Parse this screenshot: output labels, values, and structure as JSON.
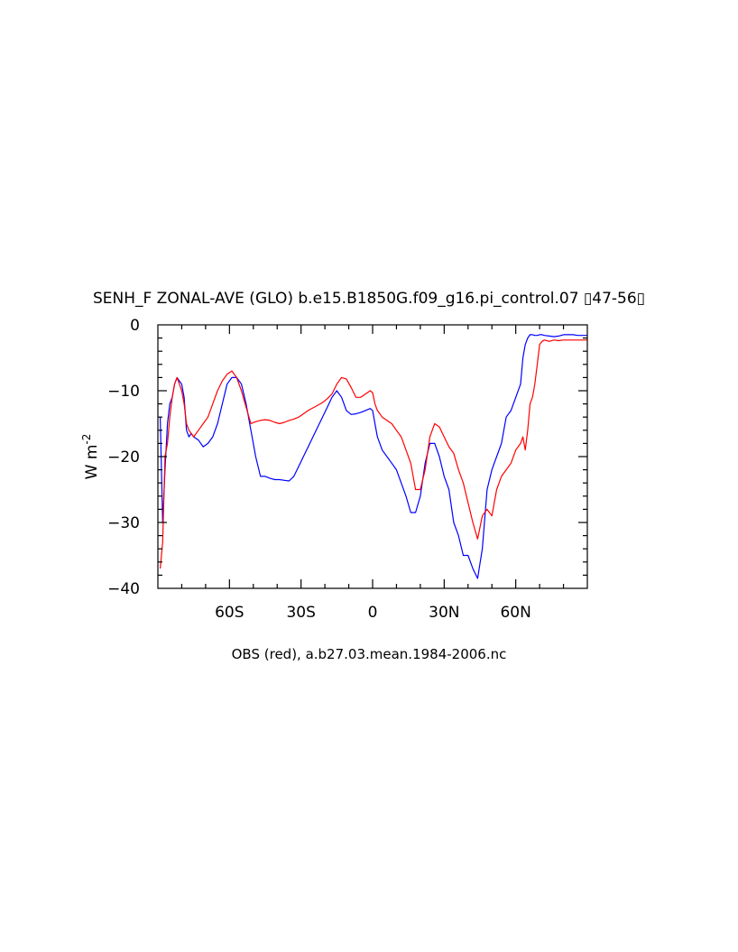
{
  "chart_data": {
    "type": "line",
    "title": "SENH_F ZONAL-AVE (GLO) b.e15.B1850G.f09_g16.pi_control.07 ▯47-56▯",
    "ylabel": "W m",
    "ylabel_exponent": "-2",
    "caption": "OBS (red), a.b27.03.mean.1984-2006.nc",
    "xlim": [
      -90,
      90
    ],
    "ylim": [
      -40,
      0
    ],
    "grid": false,
    "x_ticks": [
      {
        "value": -60,
        "label": "60S"
      },
      {
        "value": -30,
        "label": "30S"
      },
      {
        "value": 0,
        "label": "0"
      },
      {
        "value": 30,
        "label": "30N"
      },
      {
        "value": 60,
        "label": "60N"
      }
    ],
    "y_ticks": [
      {
        "value": 0,
        "label": "0"
      },
      {
        "value": -10,
        "label": "−10"
      },
      {
        "value": -20,
        "label": "−20"
      },
      {
        "value": -30,
        "label": "−30"
      },
      {
        "value": -40,
        "label": "−40"
      }
    ],
    "series": [
      {
        "color": "#0000ff",
        "x": [
          -89,
          -88,
          -87,
          -86,
          -85,
          -84,
          -83,
          -82,
          -81,
          -80,
          -79,
          -78,
          -77,
          -76,
          -75,
          -73,
          -71,
          -69,
          -67,
          -65,
          -63,
          -61,
          -59,
          -57,
          -55,
          -53,
          -51,
          -49,
          -47,
          -45,
          -43,
          -41,
          -39,
          -37,
          -35,
          -33,
          -31,
          -29,
          -27,
          -25,
          -23,
          -21,
          -19,
          -17,
          -15,
          -13,
          -11,
          -9,
          -7,
          -5,
          -3,
          -1,
          0,
          1,
          2,
          4,
          6,
          8,
          10,
          12,
          14,
          16,
          18,
          20,
          22,
          24,
          26,
          28,
          30,
          32,
          34,
          36,
          38,
          40,
          42,
          44,
          46,
          48,
          50,
          52,
          54,
          56,
          58,
          60,
          62,
          63,
          64,
          65,
          66,
          67,
          68,
          69,
          70,
          71,
          72,
          74,
          76,
          78,
          80,
          82,
          84,
          86,
          88,
          90
        ],
        "values": [
          -14,
          -30,
          -22,
          -15,
          -12,
          -11,
          -9,
          -8,
          -8.5,
          -9,
          -11,
          -16,
          -17,
          -16.5,
          -17,
          -17.5,
          -18.5,
          -18,
          -17,
          -15,
          -12,
          -9,
          -8,
          -8,
          -9,
          -12,
          -16,
          -20,
          -23,
          -23,
          -23.3,
          -23.5,
          -23.5,
          -23.6,
          -23.7,
          -23,
          -21.5,
          -20,
          -18.5,
          -17,
          -15.5,
          -14,
          -12.5,
          -11,
          -10,
          -11,
          -13,
          -13.6,
          -13.5,
          -13.3,
          -13,
          -12.7,
          -13,
          -15,
          -17,
          -19,
          -20,
          -21,
          -22,
          -24,
          -26,
          -28.5,
          -28.5,
          -26,
          -21,
          -18,
          -18,
          -20,
          -23,
          -25,
          -30,
          -32,
          -35,
          -35,
          -37,
          -38.5,
          -34,
          -25,
          -22,
          -20,
          -18,
          -14,
          -13,
          -11,
          -9,
          -5,
          -3,
          -2,
          -1.5,
          -1.5,
          -1.6,
          -1.6,
          -1.5,
          -1.5,
          -1.6,
          -1.7,
          -1.8,
          -1.7,
          -1.5,
          -1.5,
          -1.5,
          -1.6,
          -1.6,
          -1.6
        ]
      },
      {
        "color": "#ff0000",
        "x": [
          -89,
          -88,
          -87,
          -86,
          -85,
          -84,
          -83,
          -82,
          -81,
          -80,
          -79,
          -78,
          -77,
          -76,
          -75,
          -73,
          -71,
          -69,
          -67,
          -65,
          -63,
          -61,
          -59,
          -57,
          -55,
          -53,
          -51,
          -49,
          -47,
          -45,
          -43,
          -41,
          -39,
          -37,
          -35,
          -33,
          -31,
          -29,
          -27,
          -25,
          -23,
          -21,
          -19,
          -17,
          -15,
          -13,
          -11,
          -9,
          -7,
          -5,
          -3,
          -1,
          0,
          1,
          2,
          4,
          6,
          8,
          10,
          12,
          14,
          16,
          18,
          20,
          22,
          24,
          26,
          28,
          30,
          32,
          34,
          36,
          38,
          40,
          42,
          44,
          46,
          48,
          50,
          52,
          54,
          56,
          58,
          60,
          62,
          63,
          64,
          65,
          66,
          67,
          68,
          69,
          70,
          71,
          72,
          74,
          76,
          78,
          80,
          82,
          84,
          86,
          88,
          90
        ],
        "values": [
          -37,
          -33,
          -20,
          -18,
          -14,
          -11,
          -9,
          -8,
          -9,
          -10,
          -12,
          -15,
          -16,
          -16.5,
          -17,
          -16,
          -15,
          -14,
          -12,
          -10,
          -8.5,
          -7.5,
          -7,
          -8,
          -10,
          -12.5,
          -15,
          -14.7,
          -14.5,
          -14.4,
          -14.5,
          -14.8,
          -15,
          -14.8,
          -14.5,
          -14.3,
          -14,
          -13.5,
          -13,
          -12.6,
          -12.2,
          -11.8,
          -11.2,
          -10.5,
          -9,
          -8,
          -8.2,
          -9.5,
          -11,
          -11,
          -10.5,
          -10,
          -10.3,
          -12,
          -13,
          -14,
          -14.5,
          -15,
          -16,
          -17,
          -19,
          -21,
          -25,
          -25,
          -22,
          -17,
          -15,
          -15.5,
          -17,
          -18.5,
          -19.5,
          -22,
          -24,
          -27,
          -30,
          -32.5,
          -29,
          -28,
          -29,
          -25,
          -23,
          -22,
          -21,
          -19,
          -18,
          -17,
          -19,
          -16,
          -12,
          -11,
          -9,
          -6,
          -3,
          -2.5,
          -2.3,
          -2.5,
          -2.3,
          -2.4,
          -2.3,
          -2.3,
          -2.3,
          -2.3,
          -2.3,
          -2.3
        ]
      }
    ]
  }
}
